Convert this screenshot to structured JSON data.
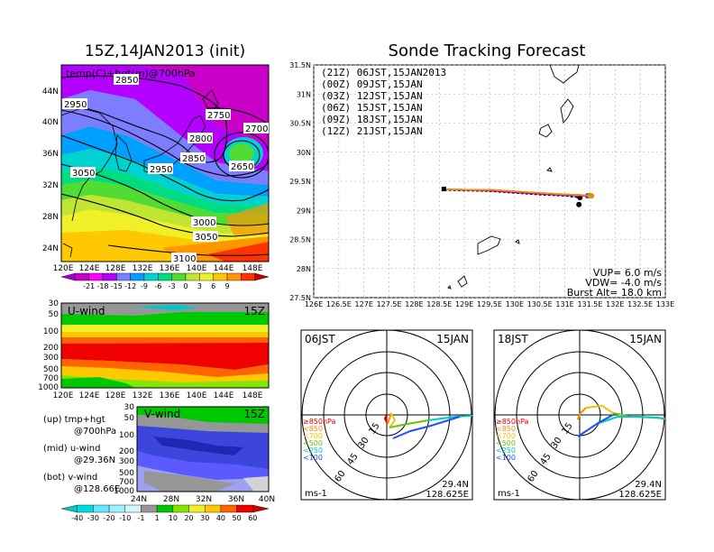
{
  "left_title": "15Z,14JAN2013 (init)",
  "right_title": "Sonde Tracking Forecast",
  "map_panel": {
    "label": "temp(C)+hgt(m)@700hPa",
    "lat_ticks": [
      "44N",
      "40N",
      "36N",
      "32N",
      "28N",
      "24N"
    ],
    "lon_ticks": [
      "120E",
      "124E",
      "128E",
      "132E",
      "136E",
      "140E",
      "144E",
      "148E"
    ],
    "contour_labels": [
      "2850",
      "2950",
      "2750",
      "2700",
      "2800",
      "2850",
      "2650",
      "3050",
      "2950",
      "3000",
      "3050",
      "3100"
    ]
  },
  "temp_colorbar": {
    "labels": [
      "-21",
      "-18",
      "-15",
      "-12",
      "-9",
      "-6",
      "-3",
      "0",
      "3",
      "6",
      "9"
    ],
    "colors": [
      "#a000c8",
      "#c800c8",
      "#ff00ff",
      "#b400ff",
      "#7d7dff",
      "#00a0ff",
      "#00d2d2",
      "#00dc82",
      "#50dc32",
      "#bee632",
      "#f0f028",
      "#ffc800",
      "#ff9600",
      "#ff3200",
      "#c80000"
    ]
  },
  "uwind_panel": {
    "label": "U-wind",
    "time": "15Z",
    "p_ticks": [
      "30",
      "50",
      "100",
      "200",
      "300",
      "500",
      "700",
      "1000"
    ],
    "lon_ticks": [
      "120E",
      "124E",
      "128E",
      "132E",
      "136E",
      "140E",
      "144E",
      "148E"
    ]
  },
  "vwind_panel": {
    "label": "V-wind",
    "time": "15Z",
    "p_ticks": [
      "30",
      "50",
      "100",
      "200",
      "300",
      "500",
      "700",
      "1000"
    ],
    "lat_ticks": [
      "24N",
      "28N",
      "32N",
      "36N",
      "40N"
    ]
  },
  "notes": {
    "up": "(up) tmp+hgt",
    "up2": "@700hPa",
    "mid": "(mid) u-wind",
    "mid2": "@29.36N",
    "bot": "(bot) v-wind",
    "bot2": "@128.66E"
  },
  "wind_colorbar": {
    "labels": [
      "-40",
      "-30",
      "-20",
      "-10",
      "-1",
      "1",
      "10",
      "20",
      "30",
      "40",
      "50",
      "60"
    ],
    "colors": [
      "#00c8c8",
      "#00dcdc",
      "#64e6ff",
      "#a0f0ff",
      "#d2f5ff",
      "#969696",
      "#00c800",
      "#82e600",
      "#f0f028",
      "#ffc800",
      "#ff6400",
      "#f00000",
      "#c80000"
    ]
  },
  "tracking": {
    "legend": [
      {
        "text": "(21Z) 06JST,15JAN2013",
        "color": "#000000"
      },
      {
        "text": "(00Z) 09JST,15JAN",
        "color": "#a000c8"
      },
      {
        "text": "(03Z) 12JST,15JAN",
        "color": "#3c64ff"
      },
      {
        "text": "(06Z) 15JST,15JAN",
        "color": "#00c800"
      },
      {
        "text": "(09Z) 18JST,15JAN",
        "color": "#e6c800"
      },
      {
        "text": "(12Z) 21JST,15JAN",
        "color": "#ff8200"
      }
    ],
    "lat_ticks": [
      "31.5N",
      "31N",
      "30.5N",
      "30N",
      "29.5N",
      "29N",
      "28.5N",
      "28N",
      "27.5N"
    ],
    "lon_ticks": [
      "126E",
      "126.5E",
      "127E",
      "127.5E",
      "128E",
      "128.5E",
      "129E",
      "129.5E",
      "130E",
      "130.5E",
      "131E",
      "131.5E",
      "132E",
      "132.5E",
      "133E"
    ],
    "vup": "VUP=  6.0  m/s",
    "vdw": "VDW= -4.0  m/s",
    "burst": "Burst Alt= 18.0  km"
  },
  "hodo_left": {
    "time": "06JST",
    "date": "15JAN",
    "ring_labels": [
      "15",
      "30",
      "45",
      "60"
    ],
    "levels": [
      {
        "text": "≥850hPa",
        "color": "#e60000"
      },
      {
        "text": "<850",
        "color": "#ff8c00"
      },
      {
        "text": "<700",
        "color": "#e6c800"
      },
      {
        "text": "<500",
        "color": "#64c800"
      },
      {
        "text": "<250",
        "color": "#00c8c8"
      },
      {
        "text": "<100",
        "color": "#1e50ff"
      }
    ],
    "units": "ms-1",
    "lat": "29.4N",
    "lon": "128.625E"
  },
  "hodo_right": {
    "time": "18JST",
    "date": "15JAN",
    "ring_labels": [
      "15",
      "30",
      "45",
      "60"
    ],
    "levels": [
      {
        "text": "≥850hPa",
        "color": "#e60000"
      },
      {
        "text": "<850",
        "color": "#ff8c00"
      },
      {
        "text": "<700",
        "color": "#e6c800"
      },
      {
        "text": "<500",
        "color": "#64c800"
      },
      {
        "text": "<250",
        "color": "#00c8c8"
      },
      {
        "text": "<100",
        "color": "#1e50ff"
      }
    ],
    "units": "ms-1",
    "lat": "29.4N",
    "lon": "128.625E"
  },
  "chart_data": [
    {
      "type": "heatmap",
      "title": "15Z,14JAN2013 (init)",
      "annotation": "temp(C)+hgt(m)@700hPa",
      "x_range": [
        "120E",
        "150E"
      ],
      "y_range": [
        "22N",
        "48N"
      ]
    },
    {
      "type": "heatmap",
      "annotation": "U-wind",
      "x_range": [
        "120E",
        "150E"
      ],
      "y_range": [
        "1000",
        "30"
      ]
    },
    {
      "type": "heatmap",
      "annotation": "V-wind",
      "x_range": [
        "24N",
        "40N"
      ],
      "y_range": [
        "1000",
        "30"
      ]
    },
    {
      "type": "line",
      "title": "Sonde Tracking Forecast",
      "xlabel": "",
      "ylabel": "",
      "xlim": [
        126,
        133
      ],
      "ylim": [
        27.5,
        31.5
      ],
      "series": [
        {
          "name": "(21Z) 06JST,15JAN2013",
          "x": [
            128.6,
            129.5,
            130.0,
            130.5,
            131.0,
            131.3
          ],
          "y": [
            29.35,
            29.33,
            29.3,
            29.27,
            29.25,
            29.22
          ]
        },
        {
          "name": "(00Z) 09JST,15JAN",
          "x": [
            128.6,
            129.5,
            130.2,
            130.8,
            131.3,
            131.45
          ],
          "y": [
            29.36,
            29.34,
            29.3,
            29.27,
            29.25,
            29.25
          ]
        },
        {
          "name": "(03Z) 12JST,15JAN",
          "x": [
            128.6,
            129.6,
            130.3,
            130.9,
            131.4,
            131.48
          ],
          "y": [
            29.36,
            29.35,
            29.31,
            29.28,
            29.26,
            29.25
          ]
        },
        {
          "name": "(06Z) 15JST,15JAN",
          "x": [
            128.6,
            129.6,
            130.3,
            130.9,
            131.4,
            131.5
          ],
          "y": [
            29.36,
            29.35,
            29.31,
            29.28,
            29.26,
            29.25
          ]
        },
        {
          "name": "(09Z) 18JST,15JAN",
          "x": [
            128.6,
            129.6,
            130.3,
            130.9,
            131.4,
            131.52
          ],
          "y": [
            29.36,
            29.35,
            29.31,
            29.28,
            29.26,
            29.25
          ]
        },
        {
          "name": "(12Z) 21JST,15JAN",
          "x": [
            128.6,
            129.6,
            130.3,
            130.9,
            131.4,
            131.53
          ],
          "y": [
            29.36,
            29.35,
            29.31,
            29.28,
            29.26,
            29.25
          ]
        }
      ]
    }
  ]
}
